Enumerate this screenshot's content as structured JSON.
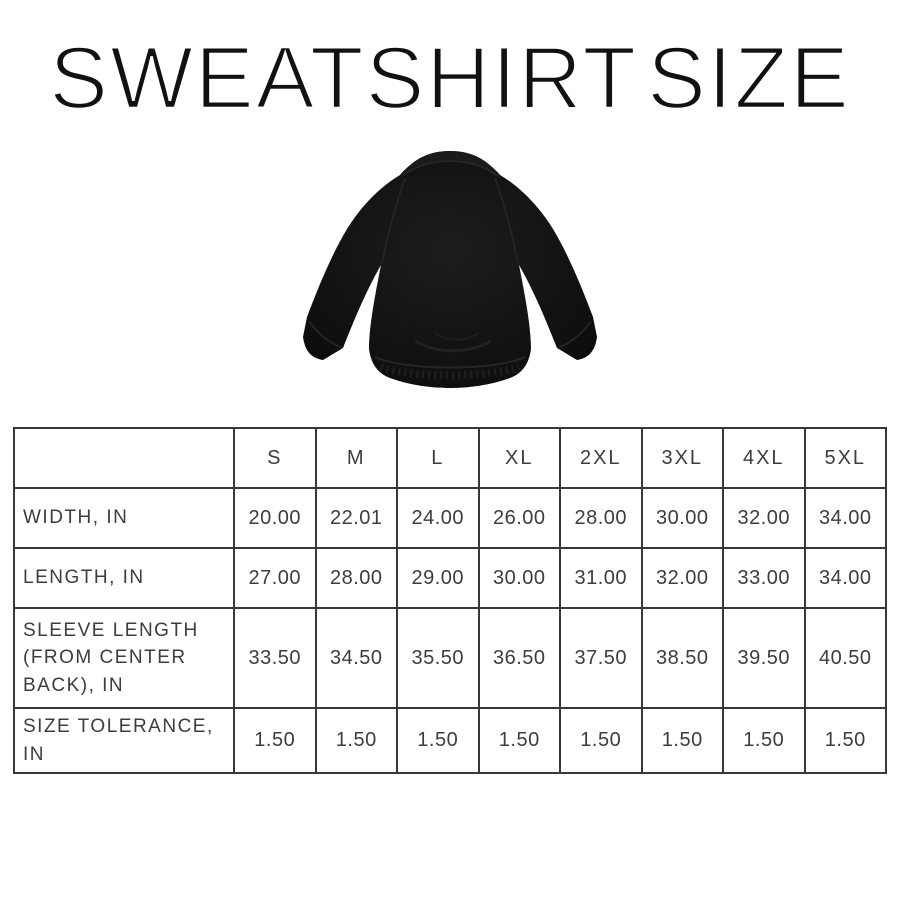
{
  "page": {
    "title": "SWEATSHIRT SIZE"
  },
  "figure": {
    "subject": "black-crewneck-raglan-sweatshirt-back-view"
  },
  "colors": {
    "background": "#ffffff",
    "text": "#3d3d3d",
    "title": "#111111",
    "table_border": "#383838",
    "sweatshirt": "#0e0e0e"
  },
  "chart_data": {
    "type": "table",
    "title": "SWEATSHIRT SIZE",
    "corner_header": "",
    "size_columns": [
      "S",
      "M",
      "L",
      "XL",
      "2XL",
      "3XL",
      "4XL",
      "5XL"
    ],
    "rows": [
      {
        "label": "WIDTH, IN",
        "values": [
          "20.00",
          "22.01",
          "24.00",
          "26.00",
          "28.00",
          "30.00",
          "32.00",
          "34.00"
        ]
      },
      {
        "label": "LENGTH, IN",
        "values": [
          "27.00",
          "28.00",
          "29.00",
          "30.00",
          "31.00",
          "32.00",
          "33.00",
          "34.00"
        ]
      },
      {
        "label": "SLEEVE LENGTH (FROM CENTER BACK), IN",
        "values": [
          "33.50",
          "34.50",
          "35.50",
          "36.50",
          "37.50",
          "38.50",
          "39.50",
          "40.50"
        ]
      },
      {
        "label": "SIZE TOLERANCE, IN",
        "values": [
          "1.50",
          "1.50",
          "1.50",
          "1.50",
          "1.50",
          "1.50",
          "1.50",
          "1.50"
        ]
      }
    ]
  }
}
